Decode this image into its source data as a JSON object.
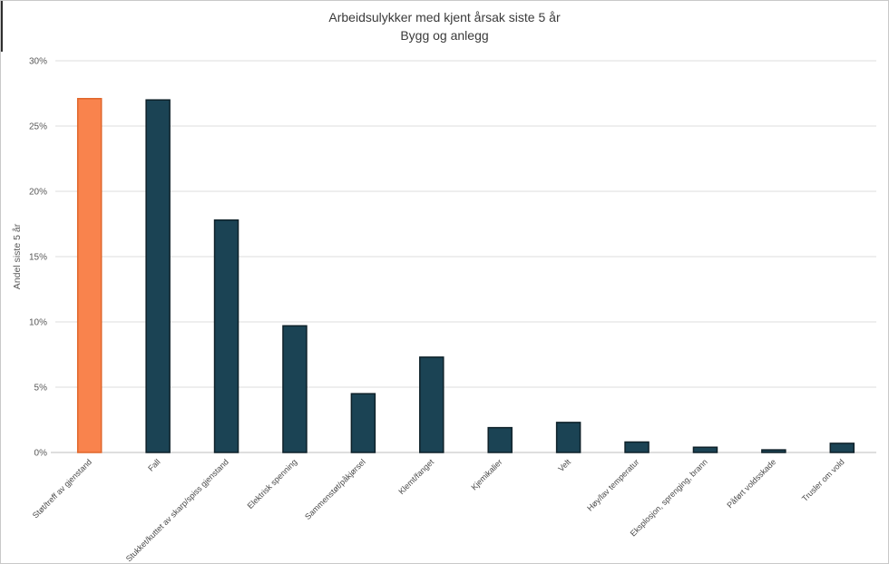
{
  "chart_data": {
    "type": "bar",
    "title": "Arbeidsulykker med kjent årsak siste 5 år",
    "subtitle": "Bygg og anlegg",
    "xlabel": "",
    "ylabel": "Andel siste 5 år",
    "categories": [
      "Støt/treff av gjenstand",
      "Fall",
      "Stukket/kuttet av skarp/spiss gjenstand",
      "Elektrisk spenning",
      "Sammenstøt/påkjørsel",
      "Klemt/fanget",
      "Kjemikalier",
      "Velt",
      "Høy/lav temperatur",
      "Eksplosjon, sprenging, brann",
      "Påført voldsskade",
      "Trusler om vold"
    ],
    "values": [
      27.1,
      27.0,
      17.8,
      9.7,
      4.5,
      7.3,
      1.9,
      2.3,
      0.8,
      0.4,
      0.2,
      0.7
    ],
    "ylim": [
      0,
      30
    ],
    "ytick_step": 5,
    "ytick_labels": [
      "0%",
      "5%",
      "10%",
      "15%",
      "20%",
      "25%",
      "30%"
    ],
    "grid": "horizontal",
    "legend": "none",
    "highlight_index": 0,
    "colors": {
      "highlight_fill": "#F9834D",
      "highlight_stroke": "#E0662A",
      "bar_fill": "#1B4354",
      "bar_stroke": "#0E2129",
      "gridline": "#DCDCDC",
      "baseline": "#BDBDBD",
      "title_text": "#3A3A3A",
      "tick_text": "#595959",
      "xtick_text": "#4A4A4A"
    }
  }
}
